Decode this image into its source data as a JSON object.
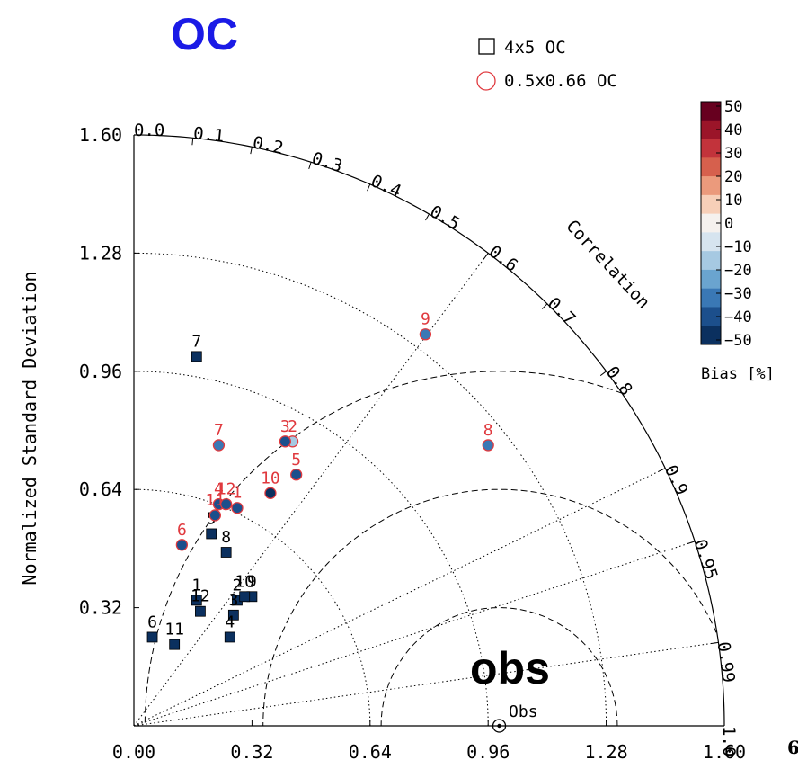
{
  "chart_data": {
    "type": "scatter",
    "subtype": "taylor-diagram",
    "title": "OC",
    "ylabel": "Normalized Standard Deviation",
    "xlabel": "",
    "std_ticks": [
      "0.00",
      "0.32",
      "0.64",
      "0.96",
      "1.28",
      "1.60"
    ],
    "std_tick_values": [
      0,
      0.32,
      0.64,
      0.96,
      1.28,
      1.6
    ],
    "y_ticks": [
      "0.32",
      "0.64",
      "0.96",
      "1.28",
      "1.60"
    ],
    "y_tick_values": [
      0.32,
      0.64,
      0.96,
      1.28,
      1.6
    ],
    "std_max": 1.6,
    "correlation_label": "Correlation",
    "correlation_ticks": [
      {
        "label": "0.0",
        "r": 0.0
      },
      {
        "label": "0.1",
        "r": 0.1
      },
      {
        "label": "0.2",
        "r": 0.2
      },
      {
        "label": "0.3",
        "r": 0.3
      },
      {
        "label": "0.4",
        "r": 0.4
      },
      {
        "label": "0.5",
        "r": 0.5
      },
      {
        "label": "0.6",
        "r": 0.6
      },
      {
        "label": "0.7",
        "r": 0.7
      },
      {
        "label": "0.8",
        "r": 0.8
      },
      {
        "label": "0.9",
        "r": 0.9
      },
      {
        "label": "0.95",
        "r": 0.95
      },
      {
        "label": "0.99",
        "r": 0.99
      },
      {
        "label": "1.0",
        "r": 1.0
      }
    ],
    "correlation_lines": [
      0.6,
      0.9,
      0.95,
      0.99
    ],
    "std_reference_arcs": [
      0.64,
      0.96,
      1.28
    ],
    "rms_arcs": [
      0.32,
      0.64,
      0.96
    ],
    "obs": {
      "std": 0.99,
      "label": "Obs",
      "annotation": "obs"
    },
    "legend": {
      "placement": "top-right",
      "entries": [
        {
          "label": "4x5 OC",
          "marker": "square",
          "color": "#000000"
        },
        {
          "label": "0.5x0.66 OC",
          "marker": "circle",
          "color": "#e0393e"
        }
      ]
    },
    "colorbar": {
      "label": "Bias [%]",
      "ticks": [
        "50",
        "40",
        "30",
        "20",
        "10",
        "0",
        "−10",
        "−20",
        "−30",
        "−40",
        "−50"
      ],
      "tick_values": [
        50,
        40,
        30,
        20,
        10,
        0,
        -10,
        -20,
        -30,
        -40,
        -50
      ],
      "colors": [
        "#67001f",
        "#9b1529",
        "#c2333b",
        "#d6604d",
        "#eb9a7c",
        "#f7cfb8",
        "#f5f1ee",
        "#d6e4ef",
        "#a6c9e2",
        "#6aa4cf",
        "#3a78b5",
        "#1c4f8c",
        "#0b305f"
      ]
    },
    "series": [
      {
        "name": "4x5 OC",
        "marker": "square",
        "label_color": "#000000",
        "points": [
          {
            "label": "1",
            "x": 0.17,
            "y": 0.34,
            "bias": -50
          },
          {
            "label": "2",
            "x": 0.28,
            "y": 0.34,
            "bias": -50
          },
          {
            "label": "3",
            "x": 0.27,
            "y": 0.3,
            "bias": -50
          },
          {
            "label": "4",
            "x": 0.26,
            "y": 0.24,
            "bias": -50
          },
          {
            "label": "5",
            "x": 0.21,
            "y": 0.52,
            "bias": -50
          },
          {
            "label": "6",
            "x": 0.05,
            "y": 0.24,
            "bias": -50
          },
          {
            "label": "7",
            "x": 0.17,
            "y": 1.0,
            "bias": -50
          },
          {
            "label": "8",
            "x": 0.25,
            "y": 0.47,
            "bias": -50
          },
          {
            "label": "9",
            "x": 0.32,
            "y": 0.35,
            "bias": -50
          },
          {
            "label": "10",
            "x": 0.3,
            "y": 0.35,
            "bias": -50
          },
          {
            "label": "11",
            "x": 0.11,
            "y": 0.22,
            "bias": -50
          },
          {
            "label": "12",
            "x": 0.18,
            "y": 0.31,
            "bias": -50
          }
        ]
      },
      {
        "name": "0.5x0.66 OC",
        "marker": "circle",
        "label_color": "#e0393e",
        "points": [
          {
            "label": "1",
            "x": 0.28,
            "y": 0.59,
            "bias": -45
          },
          {
            "label": "2",
            "x": 0.43,
            "y": 0.77,
            "bias": -20
          },
          {
            "label": "3",
            "x": 0.41,
            "y": 0.77,
            "bias": -40
          },
          {
            "label": "4",
            "x": 0.23,
            "y": 0.6,
            "bias": -40
          },
          {
            "label": "5",
            "x": 0.44,
            "y": 0.68,
            "bias": -40
          },
          {
            "label": "6",
            "x": 0.13,
            "y": 0.49,
            "bias": -40
          },
          {
            "label": "7",
            "x": 0.23,
            "y": 0.76,
            "bias": -35
          },
          {
            "label": "8",
            "x": 0.96,
            "y": 0.76,
            "bias": -30
          },
          {
            "label": "9",
            "x": 0.79,
            "y": 1.06,
            "bias": -35
          },
          {
            "label": "10",
            "x": 0.37,
            "y": 0.63,
            "bias": -50
          },
          {
            "label": "11",
            "x": 0.22,
            "y": 0.57,
            "bias": -45
          },
          {
            "label": "12",
            "x": 0.25,
            "y": 0.6,
            "bias": -40
          }
        ]
      }
    ],
    "corner_label": "6"
  }
}
